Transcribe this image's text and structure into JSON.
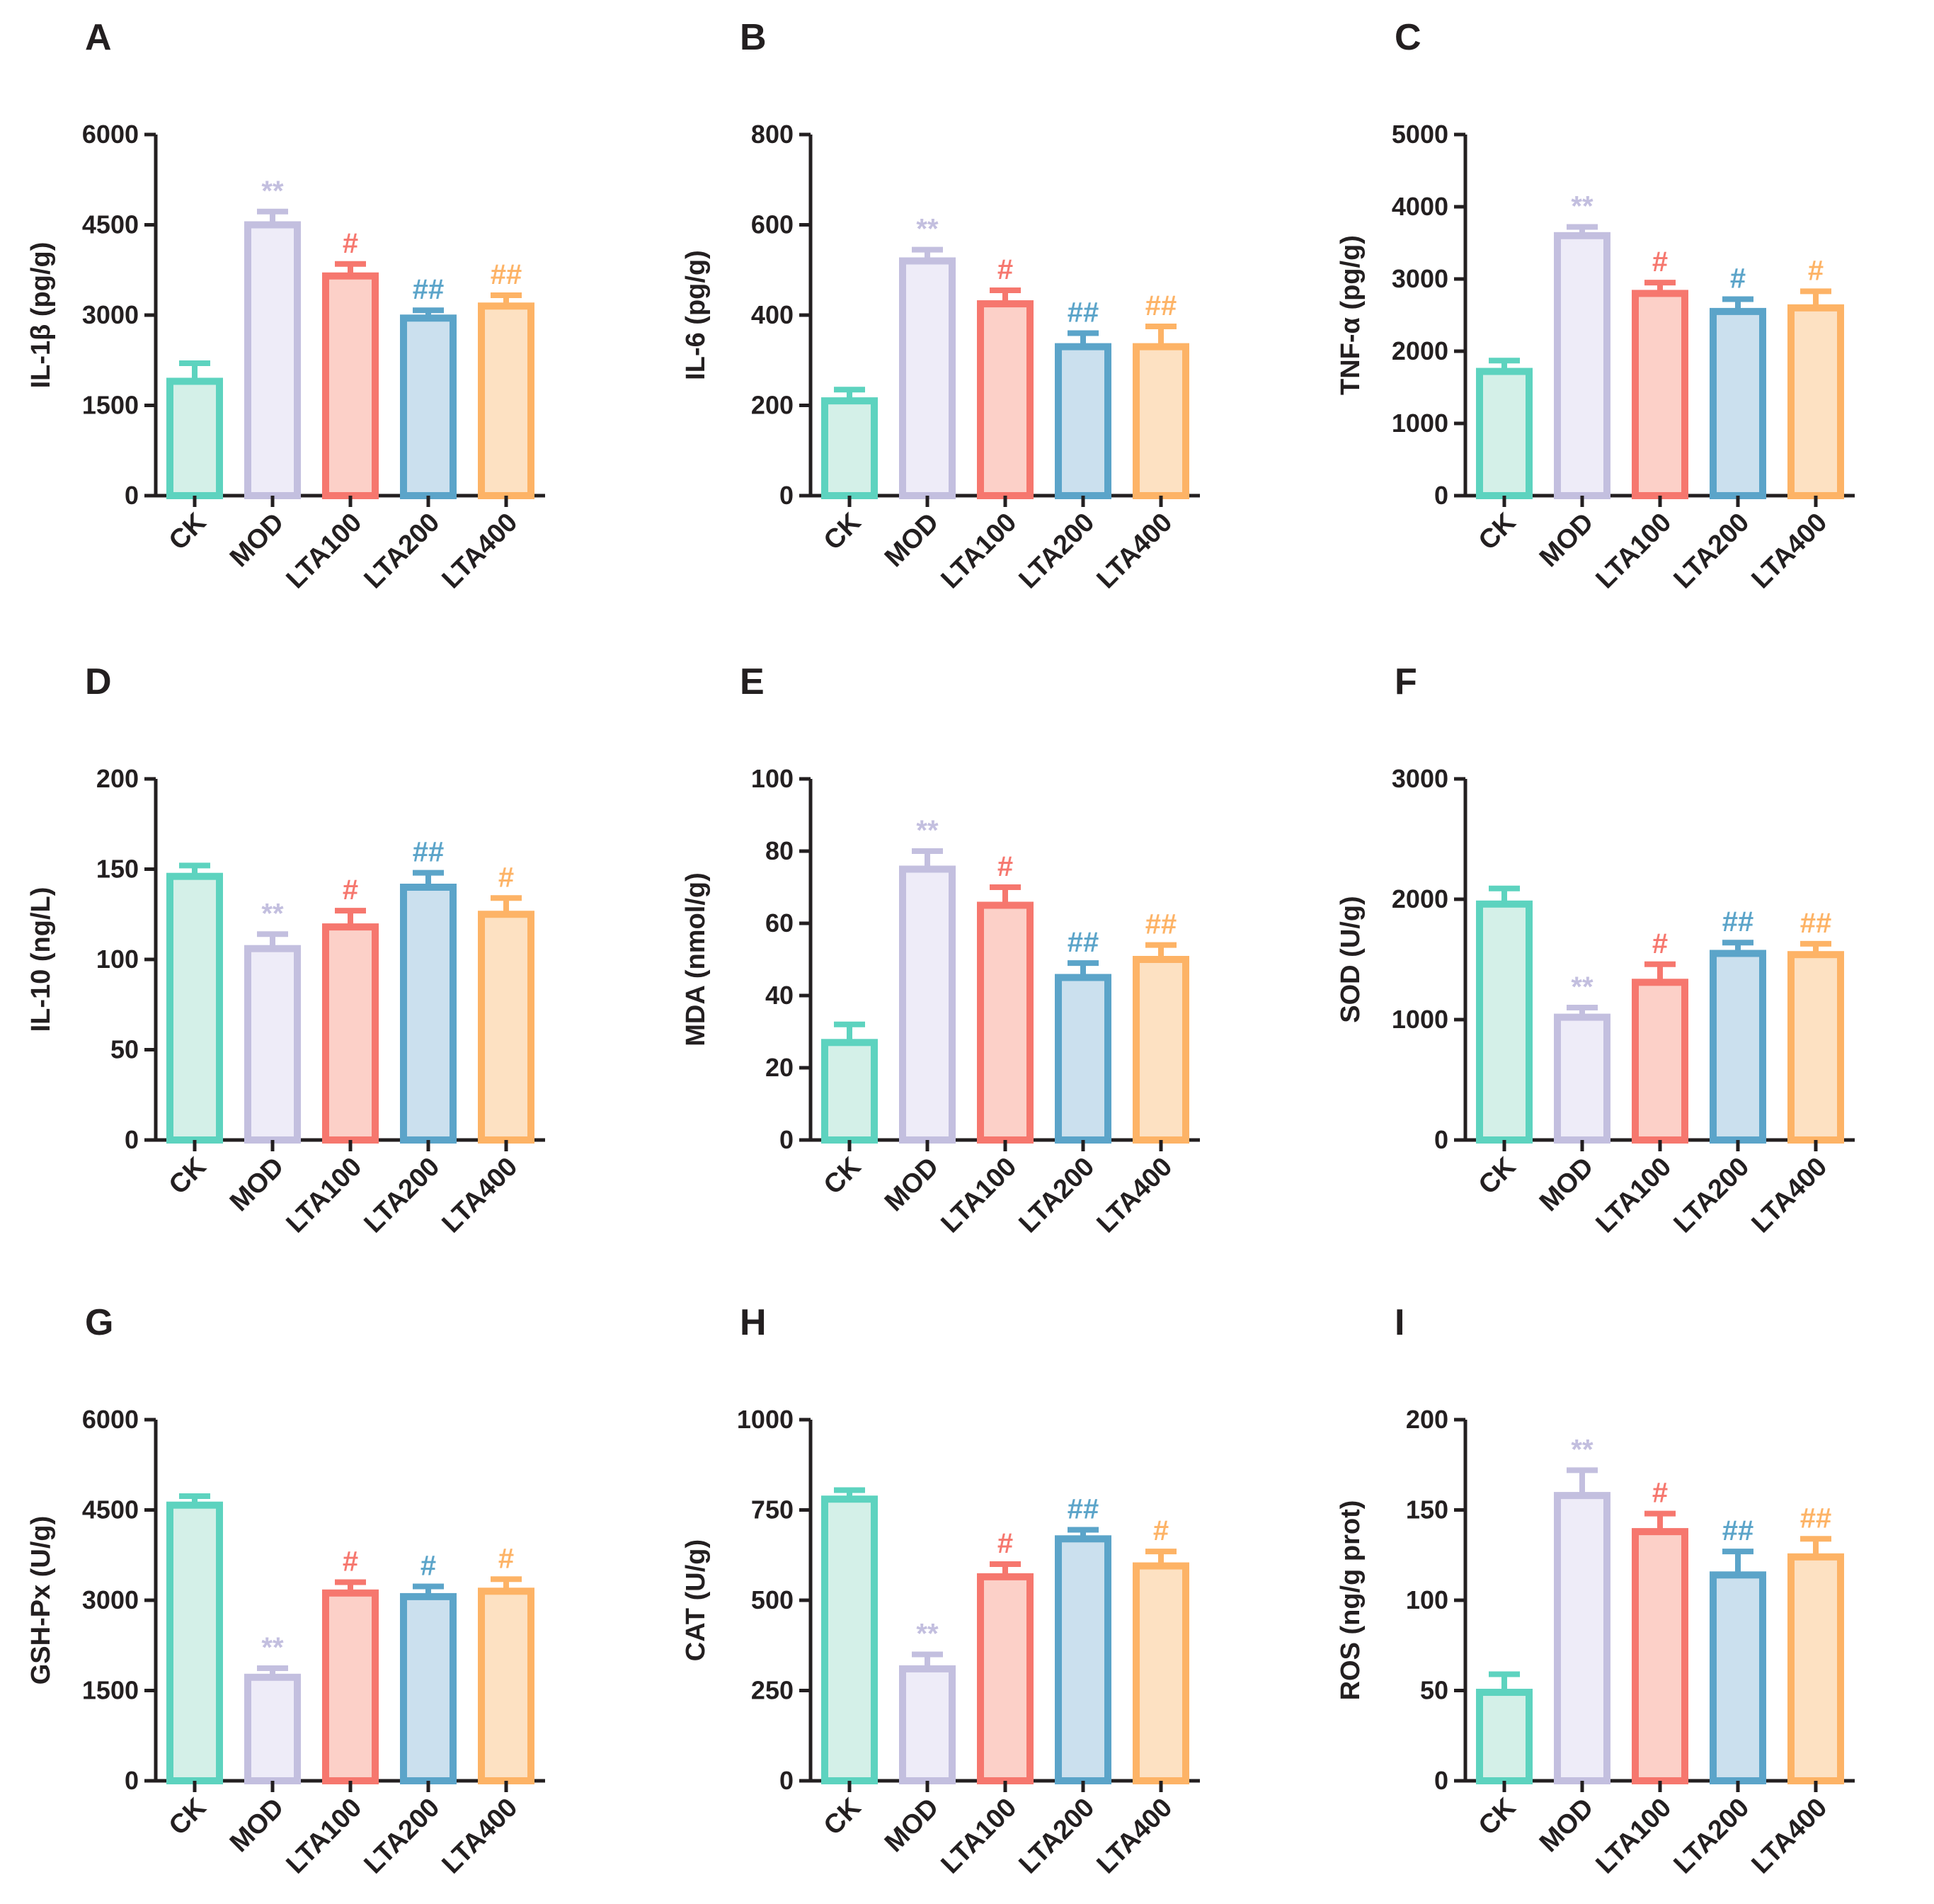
{
  "figure_title": "",
  "groups": [
    {
      "name": "CK",
      "stroke": "#5dd3bf",
      "fill": "#d4f0e8"
    },
    {
      "name": "MOD",
      "stroke": "#c3bfdf",
      "fill": "#eeecf8"
    },
    {
      "name": "LTA100",
      "stroke": "#f6776e",
      "fill": "#fcd0c8"
    },
    {
      "name": "LTA200",
      "stroke": "#5ba4c9",
      "fill": "#cbe0ee"
    },
    {
      "name": "LTA400",
      "stroke": "#fdb366",
      "fill": "#fde1c2"
    }
  ],
  "chart_data": [
    {
      "panel": "A",
      "type": "bar",
      "title": "",
      "xlabel": "",
      "ylabel": "IL-1β (pg/g)",
      "categories": [
        "CK",
        "MOD",
        "LTA100",
        "LTA200",
        "LTA400"
      ],
      "values": [
        1900,
        4500,
        3650,
        2950,
        3150
      ],
      "errors": [
        300,
        220,
        200,
        130,
        180
      ],
      "significance": [
        "",
        "**",
        "#",
        "##",
        "##"
      ],
      "ylim": [
        0,
        6000
      ],
      "yticks": [
        0,
        1500,
        3000,
        4500,
        6000
      ],
      "ytick_labels": [
        "0",
        "1500",
        "3000",
        "4500",
        "6000"
      ]
    },
    {
      "panel": "B",
      "type": "bar",
      "title": "",
      "xlabel": "",
      "ylabel": "IL-6 (pg/g)",
      "categories": [
        "CK",
        "MOD",
        "LTA100",
        "LTA200",
        "LTA400"
      ],
      "values": [
        210,
        520,
        425,
        330,
        330
      ],
      "errors": [
        25,
        25,
        30,
        30,
        45
      ],
      "significance": [
        "",
        "**",
        "#",
        "##",
        "##"
      ],
      "ylim": [
        0,
        800
      ],
      "yticks": [
        0,
        200,
        400,
        600,
        800
      ],
      "ytick_labels": [
        "0",
        "200",
        "400",
        "600",
        "800"
      ]
    },
    {
      "panel": "C",
      "type": "bar",
      "title": "",
      "xlabel": "",
      "ylabel": "TNF-α (pg/g)",
      "categories": [
        "CK",
        "MOD",
        "LTA100",
        "LTA200",
        "LTA400"
      ],
      "values": [
        1720,
        3600,
        2800,
        2550,
        2600
      ],
      "errors": [
        150,
        120,
        150,
        170,
        230
      ],
      "significance": [
        "",
        "**",
        "#",
        "#",
        "#"
      ],
      "ylim": [
        0,
        5000
      ],
      "yticks": [
        0,
        1000,
        2000,
        3000,
        4000,
        5000
      ],
      "ytick_labels": [
        "0",
        "1000",
        "2000",
        "3000",
        "4000",
        "5000"
      ]
    },
    {
      "panel": "D",
      "type": "bar",
      "title": "",
      "xlabel": "",
      "ylabel": "IL-10 (ng/L)",
      "categories": [
        "CK",
        "MOD",
        "LTA100",
        "LTA200",
        "LTA400"
      ],
      "values": [
        146,
        106,
        118,
        140,
        125
      ],
      "errors": [
        6,
        8,
        9,
        8,
        9
      ],
      "significance": [
        "",
        "**",
        "#",
        "##",
        "#"
      ],
      "ylim": [
        0,
        200
      ],
      "yticks": [
        0,
        50,
        100,
        150,
        200
      ],
      "ytick_labels": [
        "0",
        "50",
        "100",
        "150",
        "200"
      ]
    },
    {
      "panel": "E",
      "type": "bar",
      "title": "",
      "xlabel": "",
      "ylabel": "MDA (nmol/g)",
      "categories": [
        "CK",
        "MOD",
        "LTA100",
        "LTA200",
        "LTA400"
      ],
      "values": [
        27,
        75,
        65,
        45,
        50
      ],
      "errors": [
        5,
        5,
        5,
        4,
        4
      ],
      "significance": [
        "",
        "**",
        "#",
        "##",
        "##"
      ],
      "ylim": [
        0,
        100
      ],
      "yticks": [
        0,
        20,
        40,
        60,
        80,
        100
      ],
      "ytick_labels": [
        "0",
        "20",
        "40",
        "60",
        "80",
        "100"
      ]
    },
    {
      "panel": "F",
      "type": "bar",
      "title": "",
      "xlabel": "",
      "ylabel": "SOD (U/g)",
      "categories": [
        "CK",
        "MOD",
        "LTA100",
        "LTA200",
        "LTA400"
      ],
      "values": [
        1960,
        1020,
        1310,
        1550,
        1540
      ],
      "errors": [
        130,
        80,
        150,
        90,
        90
      ],
      "significance": [
        "",
        "**",
        "#",
        "##",
        "##"
      ],
      "ylim": [
        0,
        3000
      ],
      "yticks": [
        0,
        1000,
        2000,
        3000
      ],
      "ytick_labels": [
        "0",
        "1000",
        "2000",
        "3000"
      ]
    },
    {
      "panel": "G",
      "type": "bar",
      "title": "",
      "xlabel": "",
      "ylabel": "GSH-Px (U/g)",
      "categories": [
        "CK",
        "MOD",
        "LTA100",
        "LTA200",
        "LTA400"
      ],
      "values": [
        4580,
        1720,
        3120,
        3060,
        3150
      ],
      "errors": [
        150,
        150,
        180,
        170,
        200
      ],
      "significance": [
        "",
        "**",
        "#",
        "#",
        "#"
      ],
      "ylim": [
        0,
        6000
      ],
      "yticks": [
        0,
        1500,
        3000,
        4500,
        6000
      ],
      "ytick_labels": [
        "0",
        "1500",
        "3000",
        "4500",
        "6000"
      ]
    },
    {
      "panel": "H",
      "type": "bar",
      "title": "",
      "xlabel": "",
      "ylabel": "CAT (U/g)",
      "categories": [
        "CK",
        "MOD",
        "LTA100",
        "LTA200",
        "LTA400"
      ],
      "values": [
        780,
        310,
        565,
        670,
        595
      ],
      "errors": [
        25,
        40,
        35,
        25,
        40
      ],
      "significance": [
        "",
        "**",
        "#",
        "##",
        "#"
      ],
      "ylim": [
        0,
        1000
      ],
      "yticks": [
        0,
        250,
        500,
        750,
        1000
      ],
      "ytick_labels": [
        "0",
        "250",
        "500",
        "750",
        "1000"
      ]
    },
    {
      "panel": "I",
      "type": "bar",
      "title": "",
      "xlabel": "",
      "ylabel": "ROS (ng/g prot)",
      "categories": [
        "CK",
        "MOD",
        "LTA100",
        "LTA200",
        "LTA400"
      ],
      "values": [
        49,
        158,
        138,
        114,
        124
      ],
      "errors": [
        10,
        14,
        10,
        13,
        10
      ],
      "significance": [
        "",
        "**",
        "#",
        "##",
        "##"
      ],
      "ylim": [
        0,
        200
      ],
      "yticks": [
        0,
        50,
        100,
        150,
        200
      ],
      "ytick_labels": [
        "0",
        "50",
        "100",
        "150",
        "200"
      ]
    }
  ]
}
